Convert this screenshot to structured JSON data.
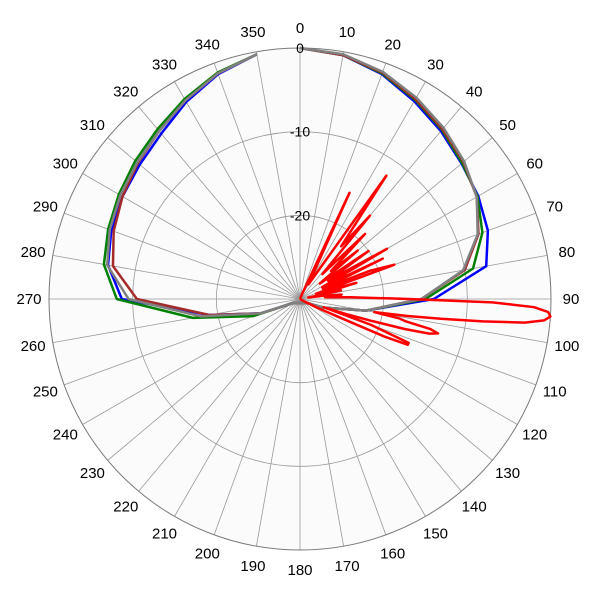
{
  "chart_data": {
    "type": "line",
    "subtype": "polar",
    "angle_unit": "degrees",
    "angle_direction": "clockwise",
    "zero_angle": "top",
    "r_range": [
      -30,
      0
    ],
    "r_ticks": [
      -20,
      -10,
      0
    ],
    "r_tick_labels": [
      "-20",
      "-10",
      "0"
    ],
    "angle_ticks": [
      0,
      10,
      20,
      30,
      40,
      50,
      60,
      70,
      80,
      90,
      100,
      110,
      120,
      130,
      140,
      150,
      160,
      170,
      180,
      190,
      200,
      210,
      220,
      230,
      240,
      250,
      260,
      270,
      280,
      290,
      300,
      310,
      320,
      330,
      340,
      350
    ],
    "angle_tick_labels": [
      "0",
      "10",
      "20",
      "30",
      "40",
      "50",
      "60",
      "70",
      "80",
      "90",
      "100",
      "110",
      "120",
      "130",
      "140",
      "150",
      "160",
      "170",
      "180",
      "190",
      "200",
      "210",
      "220",
      "230",
      "240",
      "250",
      "260",
      "270",
      "280",
      "290",
      "300",
      "310",
      "320",
      "330",
      "340",
      "350"
    ],
    "grid": true,
    "legend": "none",
    "series": [
      {
        "color": "#0000ff",
        "angles": [
          0,
          10,
          20,
          30,
          40,
          50,
          60,
          70,
          80,
          90,
          100,
          110,
          120,
          240,
          250,
          260,
          270,
          280,
          290,
          300,
          310,
          320,
          330,
          340,
          350
        ],
        "values": [
          0,
          -0.4,
          -1.4,
          -2.7,
          -3.8,
          -4.8,
          -5.4,
          -6.1,
          -7.4,
          -14,
          -22,
          -27,
          -29,
          -29,
          -25,
          -19,
          -8.7,
          -6.7,
          -6.0,
          -5.5,
          -5.0,
          -4.2,
          -2.8,
          -1.4,
          -0.3
        ]
      },
      {
        "color": "#008000",
        "angles": [
          0,
          10,
          20,
          30,
          40,
          50,
          60,
          70,
          80,
          90,
          100,
          110,
          120,
          240,
          250,
          260,
          270,
          280,
          290,
          300,
          310,
          320,
          330,
          340,
          350
        ],
        "values": [
          0,
          -0.4,
          -1.3,
          -2.5,
          -3.6,
          -4.7,
          -5.5,
          -6.8,
          -9.0,
          -15,
          -22,
          -27,
          -29,
          -29,
          -24,
          -17,
          -8.1,
          -6.2,
          -5.6,
          -5.0,
          -4.3,
          -3.5,
          -2.4,
          -1.2,
          -0.3
        ]
      },
      {
        "color": "#a52a2a",
        "angles": [
          0,
          10,
          20,
          30,
          40,
          50,
          60,
          70,
          80,
          90,
          100,
          110,
          120,
          240,
          250,
          260,
          270,
          280,
          290,
          300,
          310,
          320,
          330,
          340,
          350
        ],
        "values": [
          0,
          -0.4,
          -1.2,
          -2.4,
          -3.5,
          -4.5,
          -5.6,
          -7.3,
          -10.0,
          -15.5,
          -22,
          -27,
          -29,
          -29,
          -25,
          -19,
          -10.5,
          -7.3,
          -6.3,
          -5.5,
          -4.7,
          -3.8,
          -2.6,
          -1.3,
          -0.3
        ]
      },
      {
        "color": "#808080",
        "angles": [
          0,
          10,
          20,
          30,
          40,
          50,
          60,
          70,
          80,
          90,
          100,
          110,
          120,
          240,
          250,
          260,
          270,
          280,
          290,
          300,
          310,
          320,
          330,
          340,
          350
        ],
        "values": [
          0,
          -0.3,
          -1.1,
          -2.2,
          -3.3,
          -4.4,
          -5.6,
          -7.4,
          -10.2,
          -15.5,
          -22,
          -27,
          -29,
          -29,
          -25,
          -18,
          -9.5,
          -6.6,
          -5.8,
          -5.2,
          -4.6,
          -3.8,
          -2.6,
          -1.3,
          -0.3
        ]
      },
      {
        "color": "#ff0000",
        "angles": [
          0,
          10,
          20,
          25,
          30,
          35,
          38,
          40,
          42,
          45,
          48,
          50,
          52,
          55,
          57,
          60,
          62,
          64,
          66,
          68,
          70,
          72,
          74,
          76,
          78,
          80,
          82,
          84,
          86,
          88,
          90,
          91,
          92,
          93,
          94,
          95,
          96,
          97,
          98,
          99,
          100,
          101,
          102,
          103,
          104,
          105,
          106,
          107,
          108,
          109,
          110,
          111,
          112,
          113,
          114,
          115,
          116,
          117,
          118,
          119,
          120,
          122,
          125,
          128,
          130,
          135,
          140,
          150,
          160,
          170,
          180
        ],
        "values": [
          -30,
          -30,
          -29.7,
          -16,
          -28,
          -12,
          -22,
          -17,
          -26,
          -19,
          -25,
          -21,
          -27,
          -20,
          -26,
          -18,
          -27,
          -19,
          -27,
          -21,
          -18,
          -28,
          -23,
          -27,
          -25,
          -29,
          -27,
          -25,
          -27,
          -24,
          -17,
          -7,
          -2,
          -0.3,
          0,
          -0.7,
          -3,
          -8,
          -13,
          -17,
          -21,
          -18,
          -17,
          -14,
          -13,
          -14,
          -17,
          -21,
          -24,
          -27,
          -21,
          -19,
          -16,
          -16,
          -19,
          -25,
          -27,
          -28,
          -29,
          -29,
          -30,
          -30,
          -30,
          -30,
          -30,
          -30,
          -30,
          -30,
          -30,
          -30,
          -30
        ]
      }
    ]
  }
}
